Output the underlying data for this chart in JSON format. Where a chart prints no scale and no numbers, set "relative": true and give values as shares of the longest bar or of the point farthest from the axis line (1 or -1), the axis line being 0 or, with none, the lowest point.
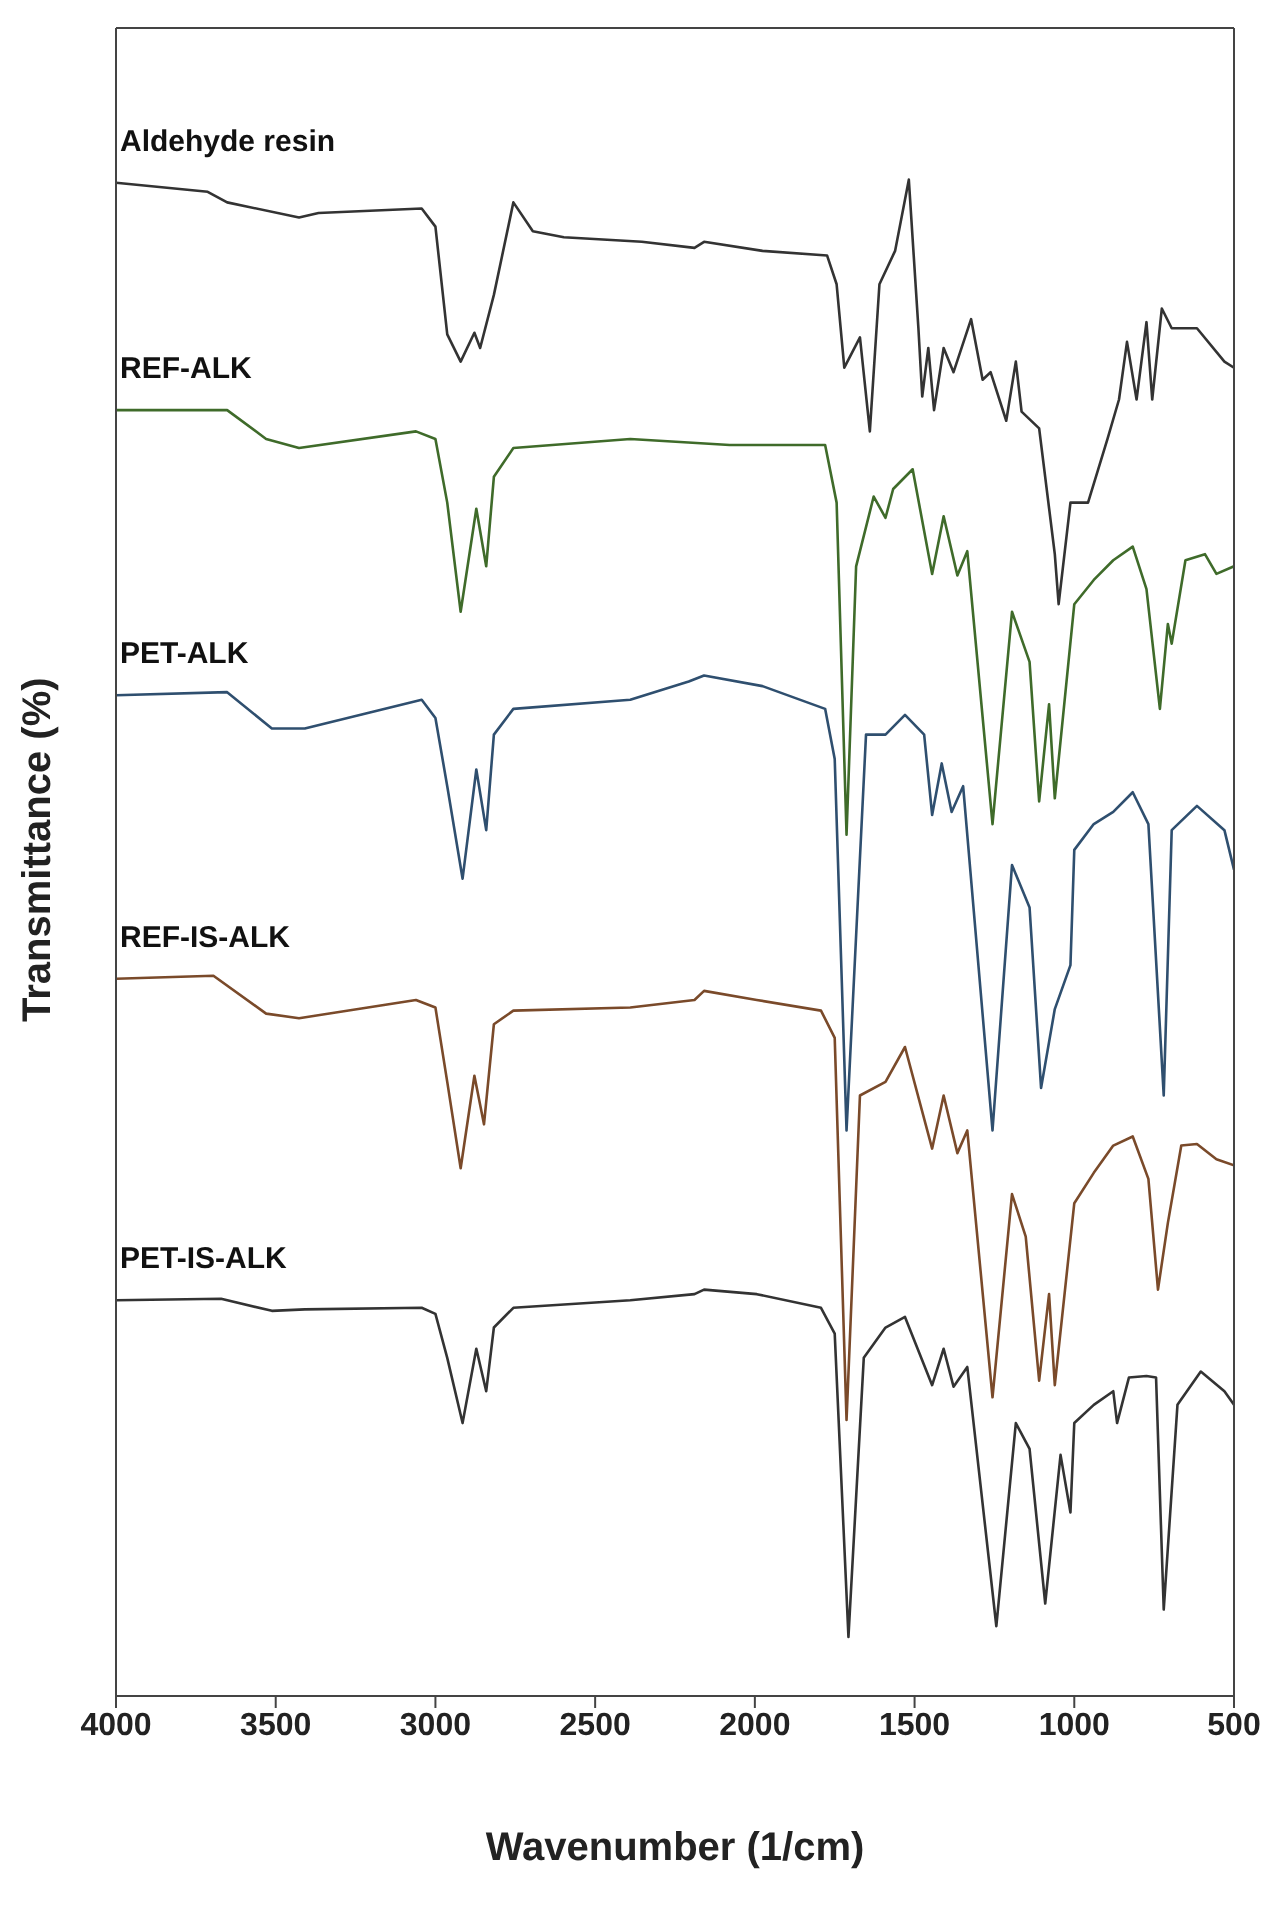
{
  "chart_data": {
    "type": "line",
    "relative": true,
    "xlabel": "Wavenumber (1/cm)",
    "ylabel": "Transmittance (%)",
    "xlim": [
      4000,
      500
    ],
    "xticks": [
      4000,
      3500,
      3000,
      2500,
      2000,
      1500,
      1000,
      500
    ],
    "marker": "none",
    "line_style": "solid",
    "series": [
      {
        "name": "Aldehyde resin",
        "color": "#333333",
        "x": [
          4000,
          3713,
          3652,
          3427,
          3366,
          3043,
          3000,
          2963,
          2921,
          2878,
          2860,
          2817,
          2756,
          2695,
          2598,
          2354,
          2189,
          2159,
          1976,
          1774,
          1744,
          1720,
          1671,
          1640,
          1610,
          1561,
          1518,
          1488,
          1476,
          1457,
          1439,
          1409,
          1378,
          1323,
          1287,
          1262,
          1213,
          1183,
          1165,
          1110,
          1061,
          1049,
          1012,
          957,
          896,
          860,
          835,
          805,
          774,
          756,
          726,
          695,
          616,
          530,
          500
        ],
        "values": [
          0.998,
          0.992,
          0.985,
          0.975,
          0.978,
          0.981,
          0.969,
          0.898,
          0.88,
          0.899,
          0.889,
          0.924,
          0.985,
          0.966,
          0.962,
          0.959,
          0.955,
          0.959,
          0.953,
          0.95,
          0.931,
          0.876,
          0.896,
          0.834,
          0.931,
          0.953,
          1.0,
          0.902,
          0.857,
          0.889,
          0.848,
          0.889,
          0.873,
          0.908,
          0.868,
          0.873,
          0.841,
          0.88,
          0.847,
          0.836,
          0.753,
          0.72,
          0.787,
          0.787,
          0.829,
          0.855,
          0.893,
          0.855,
          0.906,
          0.855,
          0.915,
          0.902,
          0.902,
          0.88,
          0.876
        ]
      },
      {
        "name": "REF-ALK",
        "color": "#3f6b2a",
        "x": [
          4000,
          3652,
          3530,
          3427,
          3061,
          3000,
          2963,
          2921,
          2872,
          2841,
          2817,
          2756,
          2390,
          2079,
          1780,
          1744,
          1713,
          1683,
          1628,
          1591,
          1567,
          1506,
          1445,
          1409,
          1366,
          1335,
          1256,
          1195,
          1140,
          1110,
          1079,
          1061,
          1000,
          939,
          878,
          817,
          774,
          732,
          707,
          695,
          652,
          591,
          555,
          500
        ],
        "values": [
          0.848,
          0.848,
          0.829,
          0.823,
          0.834,
          0.829,
          0.787,
          0.715,
          0.783,
          0.745,
          0.804,
          0.823,
          0.829,
          0.825,
          0.825,
          0.787,
          0.568,
          0.745,
          0.791,
          0.777,
          0.796,
          0.809,
          0.74,
          0.778,
          0.739,
          0.755,
          0.575,
          0.715,
          0.682,
          0.59,
          0.654,
          0.592,
          0.72,
          0.736,
          0.749,
          0.758,
          0.73,
          0.651,
          0.707,
          0.694,
          0.749,
          0.753,
          0.74,
          0.745
        ]
      },
      {
        "name": "PET-ALK",
        "color": "#2f4f6f",
        "x": [
          4000,
          3652,
          3512,
          3409,
          3043,
          3000,
          2963,
          2915,
          2872,
          2841,
          2817,
          2756,
          2390,
          2207,
          2159,
          1976,
          1780,
          1750,
          1713,
          1652,
          1591,
          1530,
          1470,
          1445,
          1415,
          1384,
          1348,
          1256,
          1195,
          1140,
          1104,
          1061,
          1012,
          1000,
          939,
          878,
          817,
          768,
          720,
          695,
          616,
          530,
          500
        ],
        "values": [
          0.66,
          0.662,
          0.638,
          0.638,
          0.657,
          0.645,
          0.6,
          0.539,
          0.611,
          0.571,
          0.634,
          0.651,
          0.657,
          0.669,
          0.673,
          0.666,
          0.651,
          0.618,
          0.373,
          0.634,
          0.634,
          0.647,
          0.634,
          0.581,
          0.615,
          0.583,
          0.6,
          0.373,
          0.548,
          0.52,
          0.401,
          0.453,
          0.482,
          0.558,
          0.575,
          0.583,
          0.596,
          0.575,
          0.396,
          0.571,
          0.587,
          0.571,
          0.545
        ]
      },
      {
        "name": "REF-IS-ALK",
        "color": "#7a4a2a",
        "x": [
          4000,
          3695,
          3530,
          3427,
          3061,
          3000,
          2963,
          2921,
          2878,
          2848,
          2817,
          2756,
          2390,
          2189,
          2159,
          1994,
          1793,
          1750,
          1713,
          1671,
          1591,
          1530,
          1445,
          1409,
          1366,
          1335,
          1256,
          1195,
          1152,
          1110,
          1079,
          1061,
          1000,
          939,
          878,
          817,
          768,
          738,
          707,
          665,
          616,
          555,
          500
        ],
        "values": [
          0.473,
          0.475,
          0.45,
          0.447,
          0.459,
          0.454,
          0.405,
          0.348,
          0.409,
          0.377,
          0.443,
          0.452,
          0.454,
          0.459,
          0.465,
          0.459,
          0.452,
          0.434,
          0.182,
          0.396,
          0.405,
          0.428,
          0.361,
          0.396,
          0.358,
          0.373,
          0.197,
          0.331,
          0.303,
          0.208,
          0.265,
          0.205,
          0.325,
          0.345,
          0.363,
          0.369,
          0.341,
          0.268,
          0.312,
          0.363,
          0.364,
          0.354,
          0.35
        ]
      },
      {
        "name": "PET-IS-ALK",
        "color": "#333333",
        "x": [
          4000,
          3671,
          3512,
          3409,
          3043,
          3000,
          2963,
          2915,
          2872,
          2841,
          2817,
          2756,
          2390,
          2189,
          2159,
          1994,
          1793,
          1750,
          1707,
          1659,
          1591,
          1530,
          1445,
          1409,
          1378,
          1335,
          1244,
          1183,
          1140,
          1091,
          1043,
          1012,
          1000,
          939,
          878,
          866,
          829,
          774,
          744,
          720,
          677,
          604,
          530,
          500
        ],
        "values": [
          0.261,
          0.262,
          0.254,
          0.255,
          0.256,
          0.252,
          0.223,
          0.18,
          0.229,
          0.201,
          0.243,
          0.256,
          0.261,
          0.265,
          0.268,
          0.265,
          0.256,
          0.239,
          0.039,
          0.223,
          0.243,
          0.25,
          0.205,
          0.229,
          0.204,
          0.217,
          0.046,
          0.18,
          0.163,
          0.061,
          0.159,
          0.121,
          0.18,
          0.192,
          0.201,
          0.18,
          0.21,
          0.211,
          0.21,
          0.057,
          0.192,
          0.214,
          0.201,
          0.192
        ]
      }
    ]
  }
}
